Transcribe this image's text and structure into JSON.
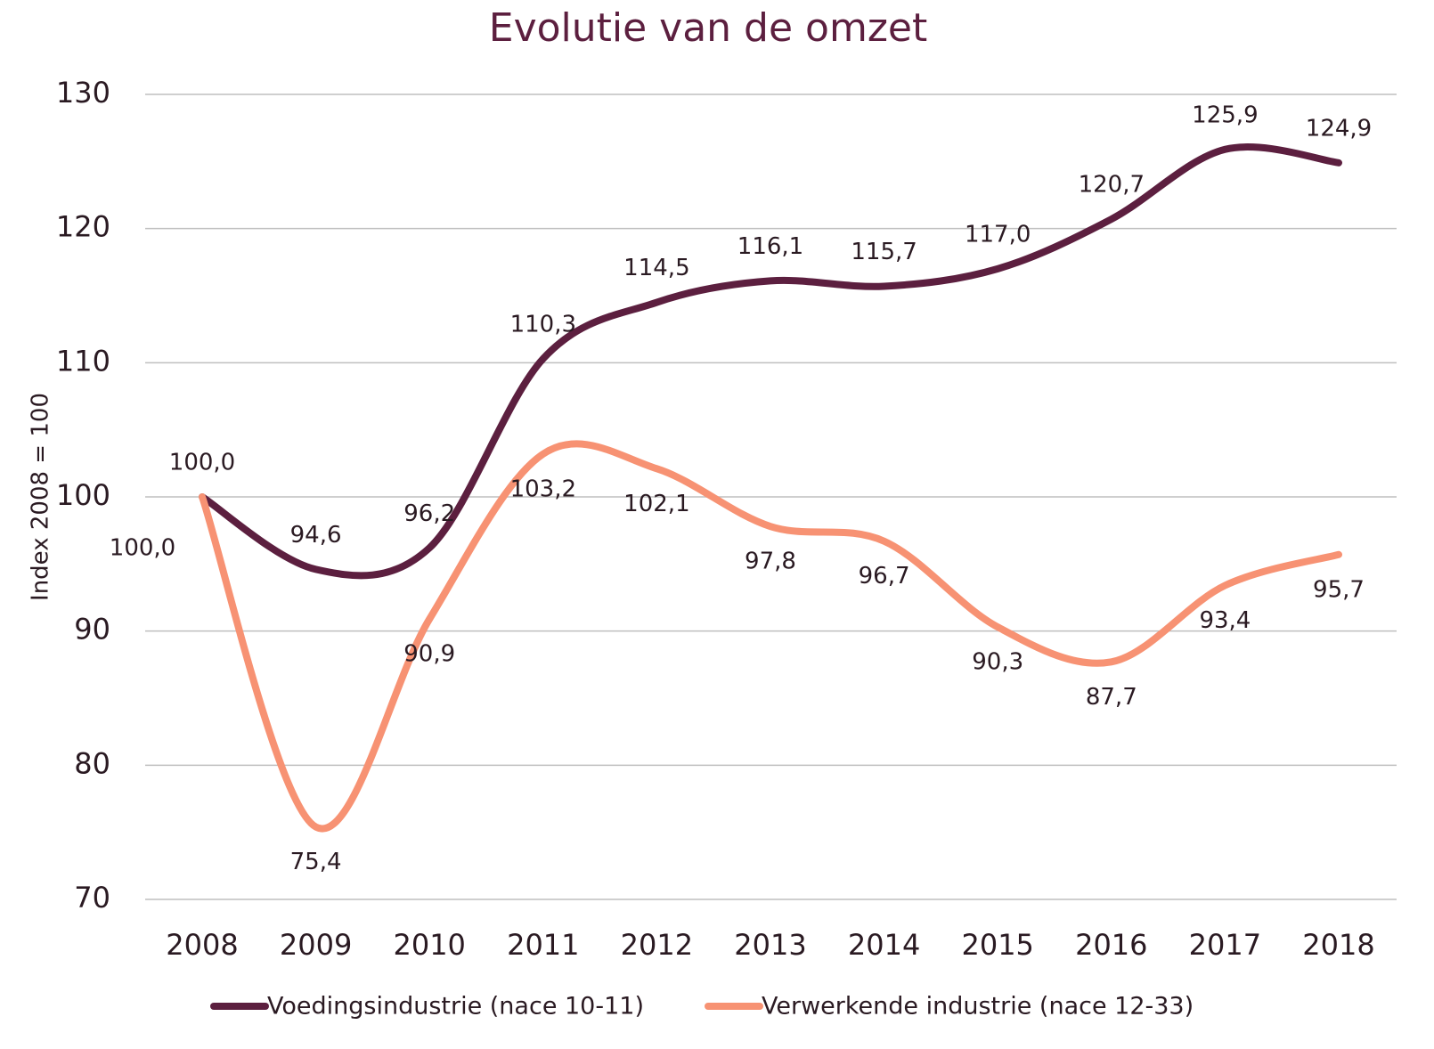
{
  "chart_data": {
    "type": "line",
    "title": "Evolutie van de omzet",
    "y_label": "Index 2008 = 100",
    "categories": [
      "2008",
      "2009",
      "2010",
      "2011",
      "2012",
      "2013",
      "2014",
      "2015",
      "2016",
      "2017",
      "2018"
    ],
    "series": [
      {
        "name": "Voedingsindustrie (nace 10-11)",
        "color": "#5c1f3f",
        "values": [
          100.0,
          94.6,
          96.2,
          110.3,
          114.5,
          116.1,
          115.7,
          117.0,
          120.7,
          125.9,
          124.9
        ],
        "value_labels": [
          "100,0",
          "94,6",
          "96,2",
          "110,3",
          "114,5",
          "116,1",
          "115,7",
          "117,0",
          "120,7",
          "125,9",
          "124,9"
        ]
      },
      {
        "name": "Verwerkende industrie (nace 12-33)",
        "color": "#f79273",
        "values": [
          100.0,
          75.4,
          90.9,
          103.2,
          102.1,
          97.8,
          96.7,
          90.3,
          87.7,
          93.4,
          95.7
        ],
        "value_labels": [
          "100,0",
          "75,4",
          "90,9",
          "103,2",
          "102,1",
          "97,8",
          "96,7",
          "90,3",
          "87,7",
          "93,4",
          "95,7"
        ]
      }
    ],
    "ylim": [
      70,
      130
    ],
    "yticks": [
      70,
      80,
      90,
      100,
      110,
      120,
      130
    ],
    "grid": true,
    "smooth": true,
    "legend": "bottom"
  }
}
